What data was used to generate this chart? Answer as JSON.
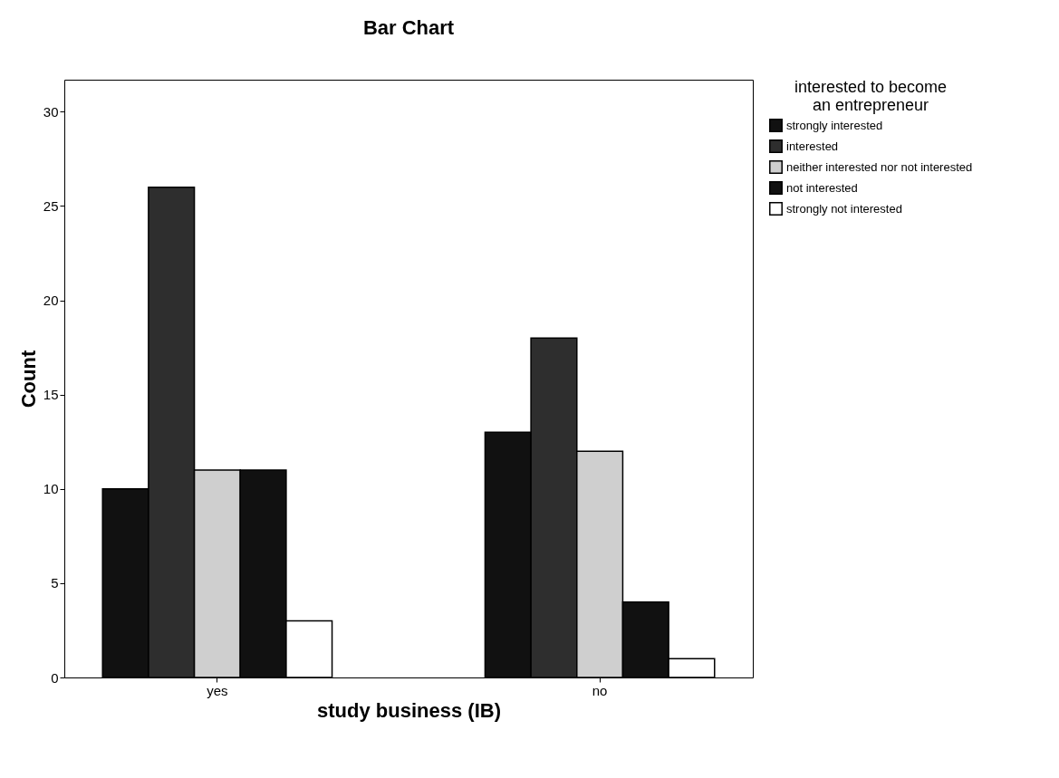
{
  "chart_data": {
    "type": "bar",
    "title": "Bar Chart",
    "xlabel": "study business (IB)",
    "ylabel": "Count",
    "legend_title": "interested to become an entrepreneur",
    "legend": "right",
    "grid": false,
    "categories": [
      "yes",
      "no"
    ],
    "series": [
      {
        "name": "strongly interested",
        "color": "#111111",
        "values": [
          10,
          13
        ]
      },
      {
        "name": "interested",
        "color": "#2e2e2e",
        "values": [
          26,
          18
        ]
      },
      {
        "name": "neither interested nor not interested",
        "color": "#cfcfcf",
        "values": [
          11,
          12
        ]
      },
      {
        "name": "not interested",
        "color": "#111111",
        "values": [
          11,
          4
        ]
      },
      {
        "name": "strongly not interested",
        "color": "#ffffff",
        "values": [
          3,
          1
        ]
      }
    ],
    "ylim": [
      0,
      31.7
    ],
    "yticks": [
      0,
      5,
      10,
      15,
      20,
      25,
      30
    ]
  }
}
